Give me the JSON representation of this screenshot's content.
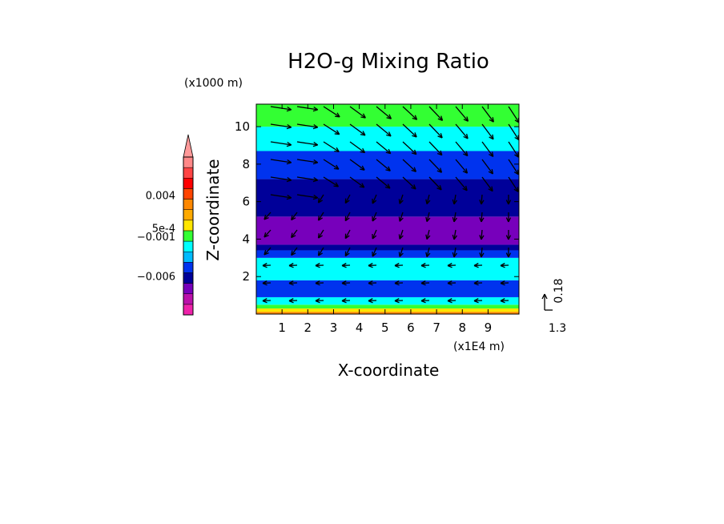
{
  "chart_data": {
    "type": "heatmap",
    "title": "H2O-g Mixing Ratio",
    "xlabel": "X-coordinate",
    "ylabel": "Z-coordinate",
    "x_unit": "(x1E4 m)",
    "y_unit": "(x1000 m)",
    "xlim": [
      0,
      10.2
    ],
    "ylim": [
      0,
      11.2
    ],
    "x_ticks": [
      "1",
      "2",
      "3",
      "4",
      "5",
      "6",
      "7",
      "8",
      "9"
    ],
    "y_ticks": [
      "2",
      "4",
      "6",
      "8",
      "10"
    ],
    "bands": [
      {
        "z_bottom": 0.0,
        "z_top": 0.12,
        "color": "#ff8800"
      },
      {
        "z_bottom": 0.12,
        "z_top": 0.3,
        "color": "#ffe600"
      },
      {
        "z_bottom": 0.3,
        "z_top": 0.5,
        "color": "#33ff33"
      },
      {
        "z_bottom": 0.5,
        "z_top": 0.9,
        "color": "#00ffff"
      },
      {
        "z_bottom": 0.9,
        "z_top": 1.8,
        "color": "#0033ee"
      },
      {
        "z_bottom": 1.8,
        "z_top": 3.0,
        "color": "#00ffff"
      },
      {
        "z_bottom": 3.0,
        "z_top": 3.4,
        "color": "#0033ee"
      },
      {
        "z_bottom": 3.4,
        "z_top": 3.7,
        "color": "#000099"
      },
      {
        "z_bottom": 3.7,
        "z_top": 5.2,
        "color": "#7700bb"
      },
      {
        "z_bottom": 5.2,
        "z_top": 7.2,
        "color": "#000099"
      },
      {
        "z_bottom": 7.2,
        "z_top": 8.7,
        "color": "#0033ee"
      },
      {
        "z_bottom": 8.7,
        "z_top": 10.0,
        "color": "#00ffff"
      },
      {
        "z_bottom": 10.0,
        "z_top": 11.2,
        "color": "#33ff33"
      }
    ],
    "colorbar": {
      "labels": [
        {
          "text": "0.004",
          "level": 11.3
        },
        {
          "text": "5e-4",
          "level": 8.2
        },
        {
          "text": "−0.001",
          "level": 7.4
        },
        {
          "text": "−0.006",
          "level": 3.6
        }
      ],
      "colors": [
        "#ee22aa",
        "#bb11aa",
        "#7700bb",
        "#000099",
        "#0033ee",
        "#00bbff",
        "#00ffff",
        "#33ff33",
        "#ffe600",
        "#ffaa00",
        "#ff8800",
        "#ff4400",
        "#ff0000",
        "#ff4444",
        "#ff8888"
      ],
      "arrow_color": "#ff9999"
    },
    "vector_reference": {
      "label": "0.18",
      "value_label": "1.3"
    }
  }
}
